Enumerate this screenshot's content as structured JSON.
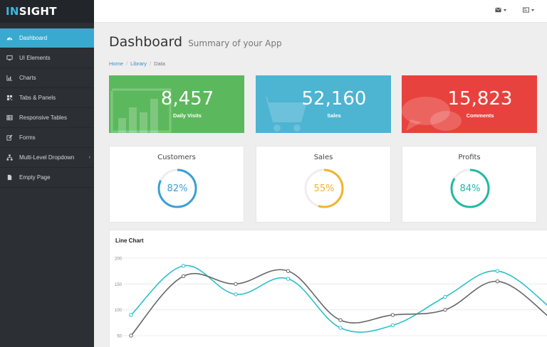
{
  "brand": {
    "prefix": "IN",
    "suffix": "SIGHT"
  },
  "sidebar": {
    "items": [
      {
        "label": "Dashboard",
        "icon": "dashboard-icon",
        "active": true
      },
      {
        "label": "UI Elements",
        "icon": "desktop-icon"
      },
      {
        "label": "Charts",
        "icon": "bar-chart-icon"
      },
      {
        "label": "Tabs & Panels",
        "icon": "qrcode-icon"
      },
      {
        "label": "Responsive Tables",
        "icon": "table-icon"
      },
      {
        "label": "Forms",
        "icon": "edit-icon"
      },
      {
        "label": "Multi-Level Dropdown",
        "icon": "sitemap-icon",
        "has_submenu": true
      },
      {
        "label": "Empty Page",
        "icon": "file-icon"
      }
    ]
  },
  "topbar": {
    "buttons": [
      {
        "icon": "envelope-icon"
      },
      {
        "icon": "tasks-icon"
      }
    ]
  },
  "page": {
    "title": "Dashboard",
    "subtitle": "Summary of your App"
  },
  "breadcrumb": {
    "items": [
      "Home",
      "Library",
      "Data"
    ]
  },
  "stats": [
    {
      "value": "8,457",
      "label": "Daily Visits",
      "color": "#5cb85c",
      "icon": "bar-chart-icon"
    },
    {
      "value": "52,160",
      "label": "Sales",
      "color": "#4db4d2",
      "icon": "shopping-cart-icon"
    },
    {
      "value": "15,823",
      "label": "Comments",
      "color": "#e8423e",
      "icon": "comments-icon"
    }
  ],
  "donuts": [
    {
      "title": "Customers",
      "percent": 82,
      "label": "82%",
      "color": "#3a9fd6"
    },
    {
      "title": "Sales",
      "percent": 55,
      "label": "55%",
      "color": "#f0b330"
    },
    {
      "title": "Profits",
      "percent": 84,
      "label": "84%",
      "color": "#22b8a2"
    }
  ],
  "line_chart": {
    "title": "Line Chart",
    "chart_data": {
      "type": "line",
      "y_ticks": [
        200,
        150,
        100,
        50
      ],
      "ylim": [
        50,
        200
      ],
      "x": [
        0,
        1,
        2,
        3,
        4,
        5,
        6,
        7,
        8
      ],
      "series": [
        {
          "values": [
            90,
            185,
            130,
            160,
            65,
            70,
            125,
            175,
            105
          ],
          "color": "#2dbfcc"
        },
        {
          "values": [
            50,
            165,
            150,
            175,
            80,
            90,
            100,
            155,
            85
          ],
          "color": "#666666"
        }
      ],
      "grid": true
    }
  }
}
